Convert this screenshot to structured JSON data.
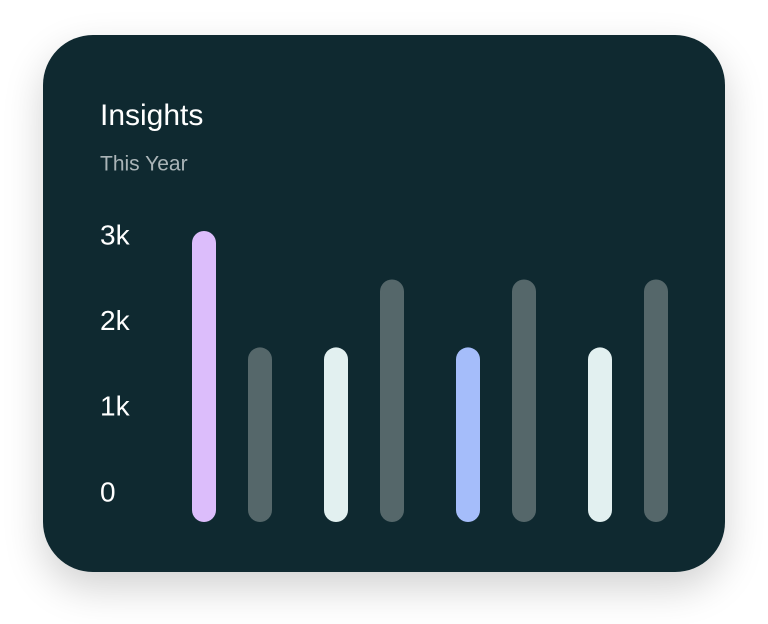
{
  "chart_data": {
    "type": "bar",
    "title": "Insights",
    "subtitle": "This Year",
    "categories": [
      null,
      null,
      null,
      null
    ],
    "series": [
      {
        "colors": [
          "#dcbdfb",
          "#e2f0f0",
          "#a5bdfa",
          "#e2f0f0"
        ],
        "values": [
          3000,
          1800,
          1800,
          1800
        ]
      },
      {
        "color": "#55676a",
        "values": [
          1800,
          2500,
          2500,
          2500
        ]
      }
    ],
    "ylim": [
      0,
      3000
    ],
    "yticks": [
      0,
      {
        "value": 1000,
        "label": "1k"
      },
      {
        "value": 2000,
        "label": "2k"
      },
      {
        "value": 3000,
        "label": "3k"
      }
    ]
  }
}
